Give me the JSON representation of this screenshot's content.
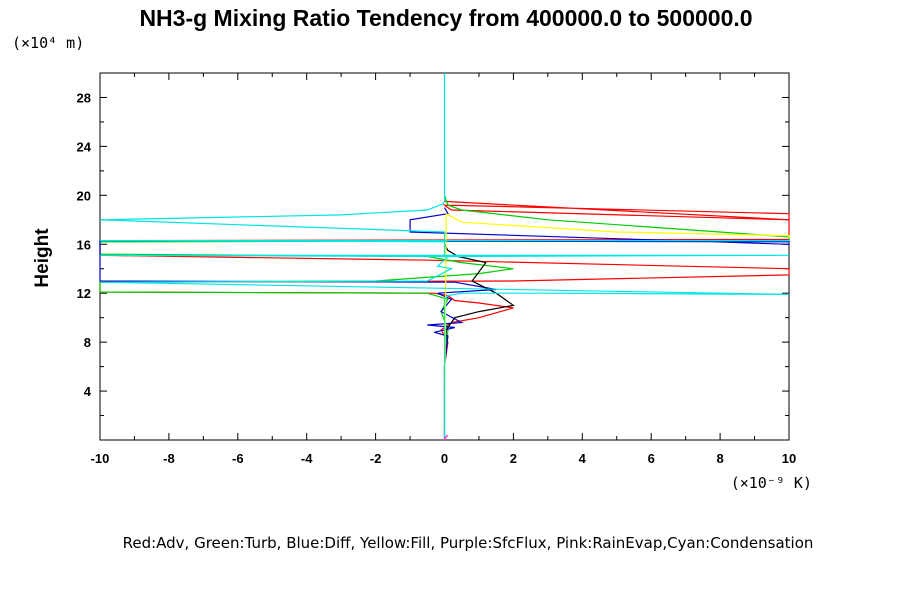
{
  "chart_data": {
    "type": "line",
    "title": "NH3-g Mixing Ratio Tendency from 400000.0 to 500000.0",
    "ylabel": "Height",
    "y_unit_label": "(×10⁴ m)",
    "x_unit_label": "(×10⁻⁹ K)",
    "legend_text": "Red:Adv, Green:Turb, Blue:Diff, Yellow:Fill, Purple:SfcFlux, Pink:RainEvap,Cyan:Condensation",
    "xlim": [
      -10,
      10
    ],
    "ylim": [
      0,
      30
    ],
    "x_ticks": [
      -10,
      -8,
      -6,
      -4,
      -2,
      0,
      2,
      4,
      6,
      8,
      10
    ],
    "x_tick_labels": [
      "-10",
      "-8",
      "-6",
      "-4",
      "-2",
      "0",
      "2",
      "4",
      "6",
      "8",
      "10"
    ],
    "y_ticks": [
      4,
      8,
      12,
      16,
      20,
      24,
      28
    ],
    "y_tick_labels": [
      "4",
      "8",
      "12",
      "16",
      "20",
      "24",
      "28"
    ],
    "grid": false,
    "series": [
      {
        "color": "#ff0000",
        "x": [
          0,
          0,
          0.1,
          -0.1,
          0.2,
          1.0,
          2.0,
          1.0,
          0.3,
          0.1,
          -0.3,
          -10,
          -10,
          2.0,
          10,
          10,
          -0.4,
          -10,
          -10,
          10,
          10,
          0.2,
          0,
          3,
          10,
          10,
          0
        ],
        "y": [
          0.2,
          6,
          8,
          9,
          9.6,
          10,
          10.8,
          11.2,
          11.4,
          11.8,
          12.0,
          12.1,
          12.9,
          13.0,
          13.5,
          14.0,
          14.7,
          15.1,
          16.3,
          16.4,
          18.0,
          18.8,
          19.2,
          19.0,
          18.5,
          18.0,
          19.5
        ]
      },
      {
        "color": "#00cc00",
        "x": [
          0,
          0.1,
          -0.1,
          0.1,
          -0.5,
          -10,
          -10,
          -2,
          1.0,
          2,
          0.5,
          -0.5,
          -10,
          -10,
          10,
          10,
          8,
          3,
          0.5,
          0.1,
          0
        ],
        "y": [
          6,
          9,
          10.5,
          11.5,
          12.0,
          12.1,
          12.9,
          13.0,
          13.6,
          14.0,
          14.5,
          15.0,
          15.2,
          16.2,
          16.3,
          16.6,
          17.0,
          18.0,
          18.8,
          19.2,
          20
        ]
      },
      {
        "color": "#0000cc",
        "x": [
          0,
          0,
          0.1,
          -0.3,
          0.3,
          -0.5,
          0.5,
          -0.1,
          0.2,
          -0.2,
          1.5,
          0.3,
          -10,
          -10,
          10,
          10,
          -1.0,
          -1.0,
          0.1,
          0
        ],
        "y": [
          0.2,
          6,
          8.5,
          8.8,
          9.2,
          9.4,
          9.6,
          10.5,
          11.5,
          12.0,
          12.3,
          12.9,
          13.0,
          16.3,
          16.2,
          16.0,
          17.0,
          18.0,
          18.5,
          19.0
        ]
      },
      {
        "color": "#000000",
        "x": [
          0,
          0.05,
          0.3,
          1.0,
          2.0,
          1.5,
          0.8,
          1.2,
          0.4,
          0.1,
          0
        ],
        "y": [
          6,
          9.0,
          10.0,
          10.5,
          11.0,
          12.0,
          13.0,
          14.5,
          15.0,
          15.5,
          16.0
        ]
      },
      {
        "color": "#ffff00",
        "x": [
          0,
          0.05,
          0.5,
          5,
          10,
          10
        ],
        "y": [
          0,
          18.5,
          17.8,
          17.0,
          16.7,
          16.5
        ]
      },
      {
        "color": "#cc00cc",
        "x": [
          0,
          0
        ],
        "y": [
          0,
          0.5
        ]
      },
      {
        "color": "#ff66cc",
        "x": [
          0,
          0.1,
          0
        ],
        "y": [
          0,
          0.4,
          0.2
        ]
      },
      {
        "color": "#00e5e5",
        "x": [
          0,
          0,
          0.1,
          0.5,
          3,
          10,
          -10,
          -0.5,
          0.2,
          -0.2,
          0.1,
          -10,
          10,
          0,
          0,
          -10,
          10,
          0,
          0,
          -10,
          -3,
          -0.5,
          -0.05,
          0,
          0
        ],
        "y": [
          0.2,
          11.5,
          11.8,
          12.0,
          12.0,
          11.9,
          12.9,
          13.0,
          14.0,
          14.2,
          15.0,
          15.1,
          15.1,
          15.0,
          16.2,
          16.3,
          16.3,
          16.3,
          17.0,
          18.0,
          18.4,
          18.8,
          19.3,
          19.5,
          30
        ]
      }
    ]
  }
}
